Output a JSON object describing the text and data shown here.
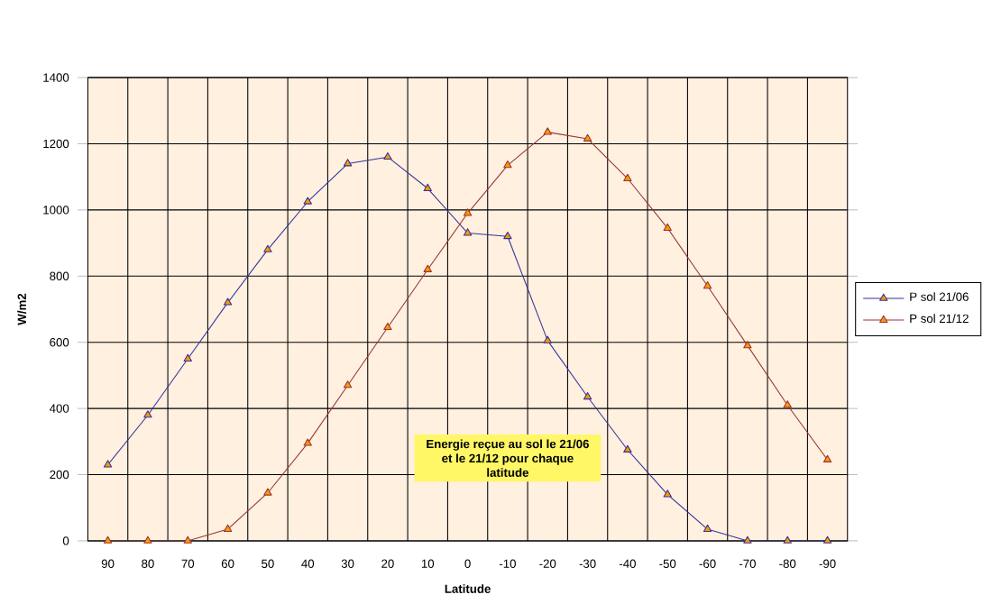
{
  "chart_data": {
    "type": "line",
    "xlabel": "Latitude",
    "ylabel": "W/m2",
    "categories": [
      "90",
      "80",
      "70",
      "60",
      "50",
      "40",
      "30",
      "20",
      "10",
      "0",
      "-10",
      "-20",
      "-30",
      "-40",
      "-50",
      "-60",
      "-70",
      "-80",
      "-90"
    ],
    "series": [
      {
        "name": "P sol 21/06",
        "color": "#333399",
        "values": [
          230,
          380,
          550,
          720,
          880,
          1025,
          1140,
          1160,
          1065,
          930,
          920,
          605,
          435,
          275,
          140,
          35,
          0,
          0,
          0
        ]
      },
      {
        "name": "P sol 21/12",
        "color": "#993333",
        "values": [
          0,
          0,
          0,
          35,
          145,
          295,
          470,
          645,
          820,
          990,
          1135,
          1235,
          1215,
          1095,
          945,
          770,
          590,
          410,
          245
        ]
      }
    ],
    "ylim": [
      0,
      1400
    ],
    "yticks": [
      0,
      200,
      400,
      600,
      800,
      1000,
      1200,
      1400
    ],
    "grid": true,
    "legend": "right",
    "marker": "triangle",
    "line_style": "solid",
    "annotations": [
      "Energie reçue au sol le 21/06 et le 21/12 pour chaque latitude"
    ]
  }
}
